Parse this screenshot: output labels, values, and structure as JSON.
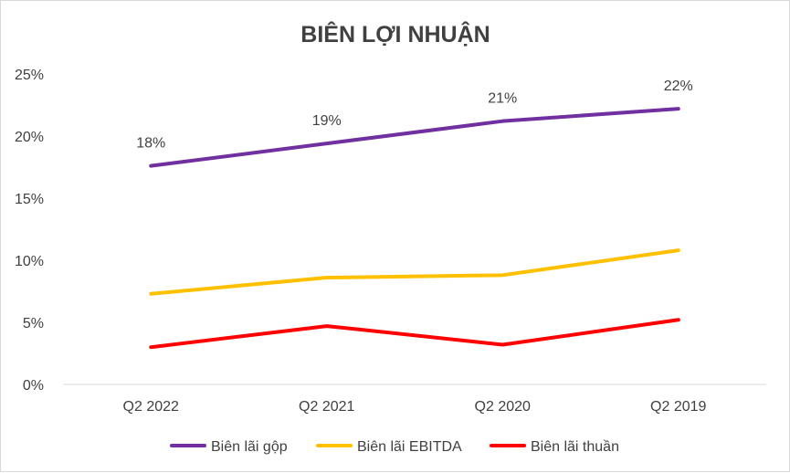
{
  "chart_data": {
    "type": "line",
    "title": "BIÊN LỢI NHUẬN",
    "xlabel": "",
    "ylabel": "",
    "categories": [
      "Q2 2022",
      "Q2 2021",
      "Q2 2020",
      "Q2 2019"
    ],
    "ylim": [
      0,
      0.25
    ],
    "yticks": [
      "0%",
      "5%",
      "10%",
      "15%",
      "20%",
      "25%"
    ],
    "grid": false,
    "legend_position": "bottom",
    "series": [
      {
        "name": "Biên lãi gộp",
        "color": "#7030a0",
        "values": [
          0.176,
          0.194,
          0.212,
          0.222
        ],
        "data_labels": [
          "18%",
          "19%",
          "21%",
          "22%"
        ]
      },
      {
        "name": "Biên lãi EBITDA",
        "color": "#ffc000",
        "values": [
          0.073,
          0.086,
          0.088,
          0.108
        ]
      },
      {
        "name": "Biên lãi thuần",
        "color": "#ff0000",
        "values": [
          0.03,
          0.047,
          0.032,
          0.052
        ]
      }
    ]
  }
}
